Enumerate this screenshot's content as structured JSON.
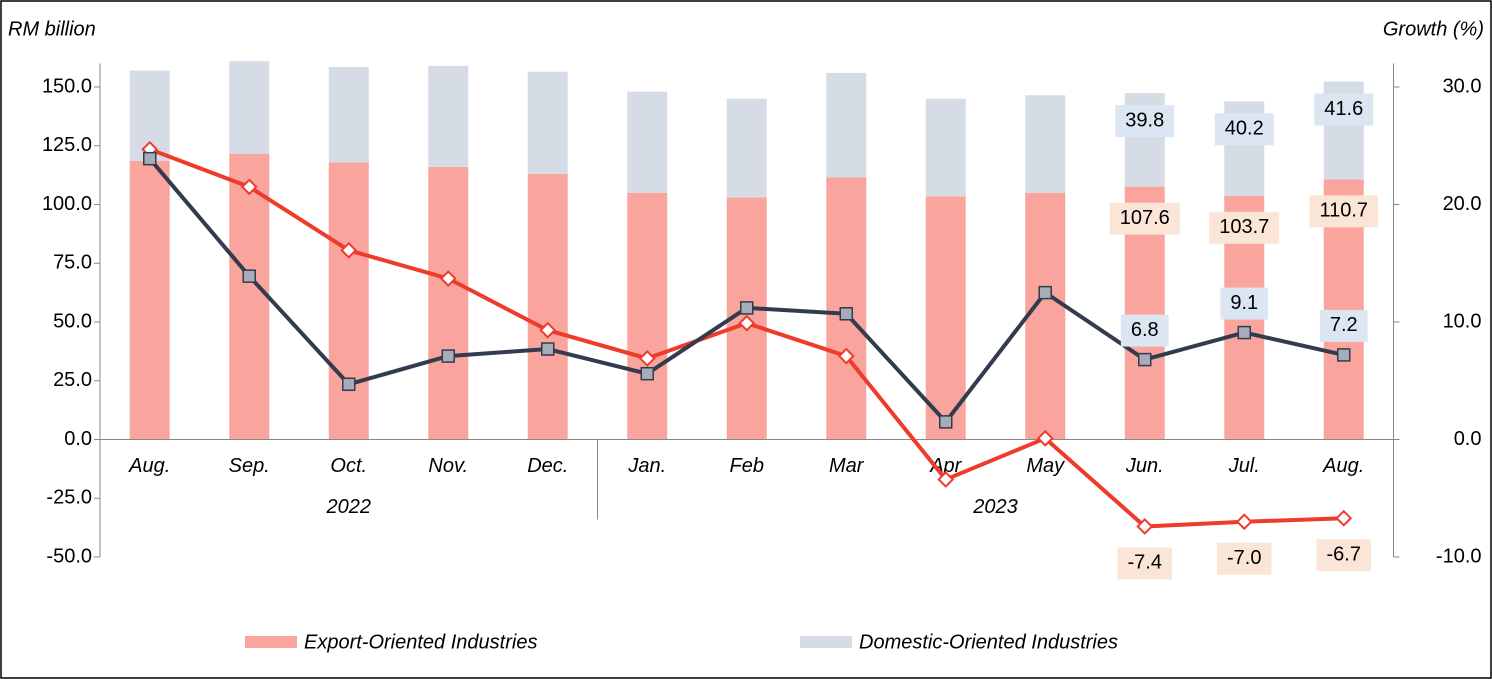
{
  "chart_data": {
    "type": "bar",
    "y_label": "RM billion",
    "y2_label": "Growth (%)",
    "categories": [
      "Aug.",
      "Sep.",
      "Oct.",
      "Nov.",
      "Dec.",
      "Jan.",
      "Feb",
      "Mar",
      "Apr",
      "May",
      "Jun.",
      "Jul.",
      "Aug."
    ],
    "groups": [
      {
        "label": "2022",
        "count": 5
      },
      {
        "label": "2023",
        "count": 8
      }
    ],
    "ylim": [
      -50,
      160
    ],
    "yticks": [
      {
        "value": -50,
        "label": "-50.0"
      },
      {
        "value": -25,
        "label": "-25.0"
      },
      {
        "value": 0,
        "label": "0.0"
      },
      {
        "value": 25,
        "label": "25.0"
      },
      {
        "value": 50,
        "label": "50.0"
      },
      {
        "value": 75,
        "label": "75.0"
      },
      {
        "value": 100,
        "label": "100.0"
      },
      {
        "value": 125,
        "label": "125.0"
      },
      {
        "value": 150,
        "label": "150.0"
      }
    ],
    "y2lim": [
      -10,
      32
    ],
    "y2ticks": [
      {
        "value": -10,
        "label": "-10.0"
      },
      {
        "value": 0,
        "label": "0.0"
      },
      {
        "value": 10,
        "label": "10.0"
      },
      {
        "value": 20,
        "label": "20.0"
      },
      {
        "value": 30,
        "label": "30.0"
      }
    ],
    "legend": "bottom",
    "series": [
      {
        "name": "Export-Oriented Industries",
        "type": "bar",
        "color": "#f9a59e",
        "label_color": "#fbe5d6",
        "values": [
          118.5,
          121.5,
          118,
          116,
          113,
          105,
          103,
          111.5,
          103.5,
          105,
          107.6,
          103.7,
          110.7
        ],
        "value_labels": [
          null,
          null,
          null,
          null,
          null,
          null,
          null,
          null,
          null,
          null,
          "107.6",
          "103.7",
          "110.7"
        ]
      },
      {
        "name": "Domestic-Oriented Industries",
        "type": "bar",
        "color": "#d6dce5",
        "label_color": "#dce6f2",
        "values": [
          38.5,
          39.5,
          40.5,
          43,
          43.5,
          43,
          42,
          44.5,
          41.5,
          41.5,
          39.8,
          40.2,
          41.6
        ],
        "value_labels": [
          null,
          null,
          null,
          null,
          null,
          null,
          null,
          null,
          null,
          null,
          "39.8",
          "40.2",
          "41.6"
        ]
      },
      {
        "type": "line",
        "axis": "y2",
        "color": "#ee3b2b",
        "marker": "diamond",
        "label_color": "#fbe5d6",
        "values": [
          24.7,
          21.5,
          16.1,
          13.7,
          9.3,
          6.9,
          9.9,
          7.1,
          -3.4,
          0.1,
          -7.4,
          -7.0,
          -6.7
        ],
        "value_labels": [
          null,
          null,
          null,
          null,
          null,
          null,
          null,
          null,
          null,
          null,
          "-7.4",
          "-7.0",
          "-6.7"
        ]
      },
      {
        "type": "line",
        "axis": "y2",
        "color": "#323c4e",
        "marker": "square",
        "label_color": "#dce6f2",
        "values": [
          23.9,
          13.9,
          4.7,
          7.1,
          7.7,
          5.6,
          11.2,
          10.7,
          1.5,
          12.5,
          6.8,
          9.1,
          7.2
        ],
        "value_labels": [
          null,
          null,
          null,
          null,
          null,
          null,
          null,
          null,
          null,
          null,
          "6.8",
          "9.1",
          "7.2"
        ]
      }
    ]
  }
}
